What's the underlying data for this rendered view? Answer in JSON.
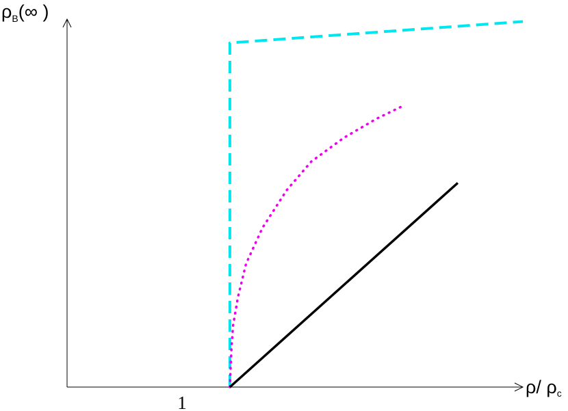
{
  "chart_data": {
    "type": "line",
    "title": "",
    "ylabel": "ρ",
    "ylabel_sub": "B",
    "ylabel_suffix": "(∞ )",
    "xlabel": "ρ/ ρ",
    "xlabel_sub": "c",
    "x_tick": "1",
    "grid": false,
    "xlim": [
      0,
      2.8
    ],
    "ylim": [
      0,
      1.55
    ],
    "series": [
      {
        "style": "dashed",
        "color": "#00e5ee",
        "points": [
          [
            1.0,
            0.0
          ],
          [
            1.0,
            1.45
          ],
          [
            2.8,
            1.54
          ]
        ]
      },
      {
        "style": "dotted",
        "color": "#ee00ee",
        "points": [
          [
            1.0,
            0.0
          ],
          [
            1.005,
            0.08
          ],
          [
            1.01,
            0.16
          ],
          [
            1.02,
            0.26
          ],
          [
            1.05,
            0.38
          ],
          [
            1.1,
            0.52
          ],
          [
            1.2,
            0.67
          ],
          [
            1.35,
            0.83
          ],
          [
            1.5,
            0.95
          ],
          [
            1.7,
            1.05
          ],
          [
            1.9,
            1.13
          ],
          [
            2.05,
            1.18
          ]
        ]
      },
      {
        "style": "solid",
        "color": "#000000",
        "points": [
          [
            1.0,
            0.0
          ],
          [
            2.4,
            0.86
          ]
        ]
      }
    ]
  }
}
